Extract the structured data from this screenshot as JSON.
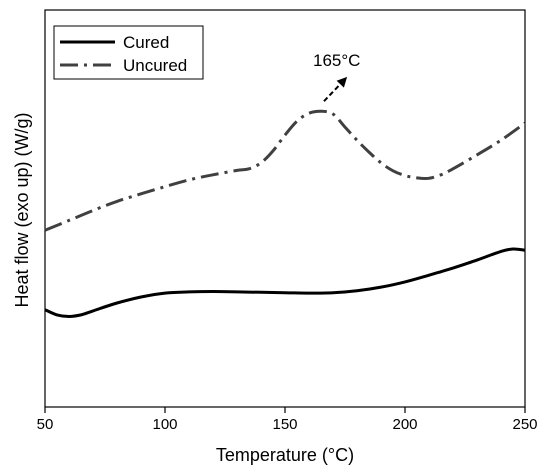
{
  "chart_data": {
    "type": "line",
    "title": "",
    "xlabel": "Temperature (°C)",
    "ylabel": "Heat flow (exo up) (W/g)",
    "xlim": [
      50,
      250
    ],
    "xticks": [
      50,
      100,
      150,
      200,
      250
    ],
    "xtick_labels": [
      "50",
      "100",
      "150",
      "200",
      "250"
    ],
    "ylim": [
      0,
      1
    ],
    "yticks_shown": false,
    "grid": false,
    "legend_position": "top-left",
    "series": [
      {
        "name": "Cured",
        "style": "solid",
        "color": "#000000",
        "x": [
          50,
          55,
          60,
          65,
          70,
          80,
          90,
          100,
          110,
          120,
          130,
          140,
          150,
          160,
          170,
          180,
          190,
          200,
          210,
          220,
          230,
          240,
          245,
          250
        ],
        "y": [
          0.245,
          0.232,
          0.228,
          0.232,
          0.242,
          0.262,
          0.277,
          0.287,
          0.29,
          0.291,
          0.29,
          0.289,
          0.288,
          0.287,
          0.288,
          0.293,
          0.302,
          0.315,
          0.332,
          0.35,
          0.37,
          0.392,
          0.398,
          0.395
        ]
      },
      {
        "name": "Uncured",
        "style": "dash-dot",
        "color": "#404040",
        "x": [
          50,
          60,
          70,
          80,
          90,
          100,
          110,
          120,
          130,
          135,
          140,
          145,
          150,
          155,
          160,
          165,
          170,
          175,
          180,
          185,
          190,
          195,
          200,
          205,
          210,
          215,
          220,
          230,
          240,
          250
        ],
        "y": [
          0.445,
          0.47,
          0.495,
          0.518,
          0.537,
          0.555,
          0.572,
          0.585,
          0.596,
          0.6,
          0.615,
          0.645,
          0.685,
          0.72,
          0.74,
          0.745,
          0.738,
          0.705,
          0.672,
          0.642,
          0.615,
          0.595,
          0.583,
          0.577,
          0.576,
          0.585,
          0.6,
          0.635,
          0.672,
          0.715
        ]
      }
    ],
    "annotations": [
      {
        "text": "165°C",
        "x": 165,
        "y": 0.745,
        "arrow": true
      }
    ]
  }
}
